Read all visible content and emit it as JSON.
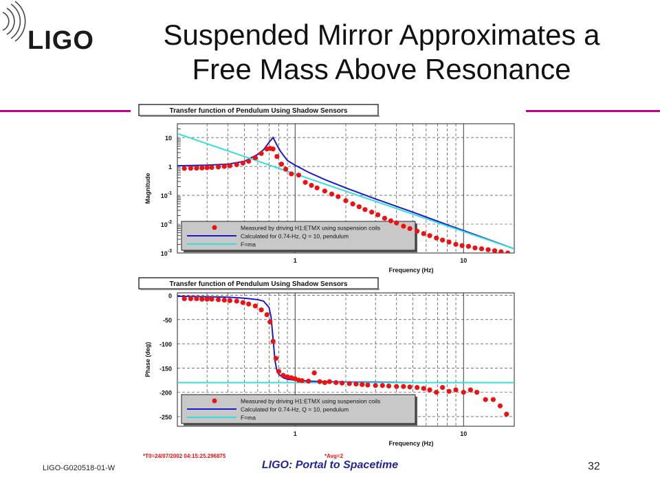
{
  "slide": {
    "logo": "LIGO",
    "title_line1": "Suspended Mirror Approximates a",
    "title_line2": "Free Mass Above Resonance",
    "footer_id": "LIGO-G020518-01-W",
    "footer_center": "LIGO: Portal to Spacetime",
    "page_number": "32",
    "accent_color": "#c00090",
    "footer_color": "#2323a0"
  },
  "chart_data": [
    {
      "type": "scatter",
      "title": "Transfer function of Pendulum Using Shadow Sensors",
      "xlabel": "Frequency (Hz)",
      "ylabel": "Magnitude",
      "xscale": "log",
      "yscale": "log",
      "xlim": [
        0.2,
        20
      ],
      "ylim": [
        0.001,
        30
      ],
      "x_ticks": [
        "1",
        "10"
      ],
      "y_ticks": [
        "10",
        "1",
        "10-1",
        "10-2",
        "10-3"
      ],
      "grid": true,
      "legend_position": "bottom",
      "legend": [
        {
          "label": "Measured by driving H1:ETMX using suspension coils",
          "color": "#ee1111",
          "kind": "marker"
        },
        {
          "label": "Calculated for 0.74-Hz, Q = 10, pendulum",
          "color": "#1a1acc",
          "kind": "line"
        },
        {
          "label": "F=ma",
          "color": "#33dddd",
          "kind": "line"
        }
      ],
      "series": [
        {
          "name": "Measured by driving H1:ETMX using suspension coils",
          "kind": "points",
          "color": "#ee1111",
          "x": [
            0.22,
            0.24,
            0.26,
            0.28,
            0.3,
            0.32,
            0.35,
            0.38,
            0.41,
            0.45,
            0.49,
            0.53,
            0.58,
            0.63,
            0.68,
            0.71,
            0.74,
            0.78,
            0.83,
            0.88,
            0.95,
            1.05,
            1.15,
            1.25,
            1.35,
            1.5,
            1.65,
            1.8,
            2.0,
            2.2,
            2.4,
            2.6,
            2.85,
            3.1,
            3.4,
            3.7,
            4.0,
            4.4,
            4.8,
            5.3,
            5.8,
            6.3,
            6.9,
            7.5,
            8.2,
            9.0,
            9.8,
            10.7,
            11.7,
            12.8,
            14.0,
            15.3,
            16.7,
            18.3
          ],
          "y": [
            0.85,
            0.86,
            0.87,
            0.88,
            0.9,
            0.92,
            0.95,
            1.0,
            1.05,
            1.15,
            1.3,
            1.5,
            2.0,
            2.8,
            4.0,
            4.2,
            4.0,
            2.2,
            1.2,
            0.8,
            0.55,
            0.5,
            0.28,
            0.22,
            0.18,
            0.14,
            0.11,
            0.09,
            0.065,
            0.05,
            0.04,
            0.032,
            0.026,
            0.021,
            0.016,
            0.013,
            0.011,
            0.0085,
            0.007,
            0.0057,
            0.0047,
            0.004,
            0.0033,
            0.0028,
            0.0024,
            0.002,
            0.0018,
            0.0017,
            0.0015,
            0.0014,
            0.0013,
            0.0012,
            0.0011,
            0.001
          ]
        },
        {
          "name": "Calculated for 0.74-Hz, Q = 10, pendulum",
          "kind": "line",
          "color": "#1a1acc",
          "x": [
            0.2,
            0.3,
            0.4,
            0.5,
            0.6,
            0.65,
            0.7,
            0.74,
            0.78,
            0.82,
            0.9,
            1.0,
            1.2,
            1.5,
            2.0,
            3.0,
            5.0,
            8.0,
            12.0,
            20.0
          ],
          "y": [
            1.05,
            1.1,
            1.2,
            1.5,
            2.6,
            3.8,
            6.8,
            10,
            5.5,
            3.3,
            1.6,
            1.1,
            0.63,
            0.35,
            0.18,
            0.075,
            0.026,
            0.0095,
            0.0041,
            0.0014
          ]
        },
        {
          "name": "F=ma",
          "kind": "line",
          "color": "#33dddd",
          "x": [
            0.2,
            1.0,
            20.0
          ],
          "y": [
            13.7,
            0.55,
            0.0014
          ]
        }
      ]
    },
    {
      "type": "scatter",
      "title": "Transfer function of Pendulum Using Shadow Sensors",
      "xlabel": "Frequency (Hz)",
      "ylabel": "Phase (deg)",
      "xscale": "log",
      "yscale": "linear",
      "xlim": [
        0.2,
        20
      ],
      "ylim": [
        -270,
        5
      ],
      "x_ticks": [
        "1",
        "10"
      ],
      "y_ticks": [
        "0",
        "-50",
        "-100",
        "-150",
        "-200",
        "-250"
      ],
      "grid": true,
      "legend_position": "bottom",
      "legend": [
        {
          "label": "Measured by driving H1:ETMX using suspension coils",
          "color": "#ee1111",
          "kind": "marker"
        },
        {
          "label": "Calculated for 0.74-Hz, Q = 10, pendulum",
          "color": "#1a1acc",
          "kind": "line"
        },
        {
          "label": "F=ma",
          "color": "#33dddd",
          "kind": "line"
        }
      ],
      "annotations": [
        "*T0=24/07/2002 04:15:25.296875",
        "*Avg=2"
      ],
      "series": [
        {
          "name": "Measured by driving H1:ETMX using suspension coils",
          "kind": "points",
          "color": "#ee1111",
          "x": [
            0.22,
            0.24,
            0.26,
            0.28,
            0.3,
            0.32,
            0.35,
            0.38,
            0.41,
            0.45,
            0.49,
            0.53,
            0.58,
            0.63,
            0.68,
            0.71,
            0.74,
            0.77,
            0.8,
            0.85,
            0.9,
            0.95,
            1.0,
            1.05,
            1.1,
            1.2,
            1.3,
            1.4,
            1.5,
            1.6,
            1.75,
            1.9,
            2.1,
            2.3,
            2.5,
            2.7,
            3.0,
            3.3,
            3.6,
            4.0,
            4.4,
            4.8,
            5.3,
            5.8,
            6.3,
            6.9,
            7.5,
            8.2,
            9.0,
            10.0,
            11.0,
            12.0,
            13.5,
            15.0,
            16.5,
            18.0
          ],
          "y": [
            -7,
            -7,
            -7,
            -8,
            -8,
            -8,
            -9,
            -10,
            -11,
            -12,
            -15,
            -18,
            -22,
            -30,
            -40,
            -55,
            -95,
            -130,
            -157,
            -165,
            -168,
            -170,
            -172,
            -175,
            -176,
            -177,
            -160,
            -178,
            -180,
            -178,
            -180,
            -181,
            -182,
            -183,
            -184,
            -185,
            -186,
            -186,
            -187,
            -188,
            -188,
            -189,
            -190,
            -192,
            -195,
            -200,
            -190,
            -198,
            -195,
            -200,
            -195,
            -200,
            -215,
            -215,
            -228,
            -245
          ]
        },
        {
          "name": "Calculated for 0.74-Hz, Q = 10, pendulum",
          "kind": "line",
          "color": "#1a1acc",
          "x": [
            0.2,
            0.3,
            0.4,
            0.5,
            0.6,
            0.65,
            0.7,
            0.72,
            0.74,
            0.76,
            0.78,
            0.8,
            0.85,
            0.9,
            1.0,
            1.2,
            1.5,
            2.0,
            3.0,
            5.0,
            10.0,
            20.0
          ],
          "y": [
            -2,
            -3,
            -4,
            -6,
            -9,
            -12,
            -25,
            -45,
            -90,
            -135,
            -155,
            -163,
            -170,
            -173,
            -175,
            -177,
            -178,
            -179,
            -179,
            -180,
            -180,
            -180
          ]
        },
        {
          "name": "F=ma",
          "kind": "line",
          "color": "#33dddd",
          "x": [
            0.2,
            20.0
          ],
          "y": [
            -180,
            -180
          ]
        }
      ]
    }
  ]
}
